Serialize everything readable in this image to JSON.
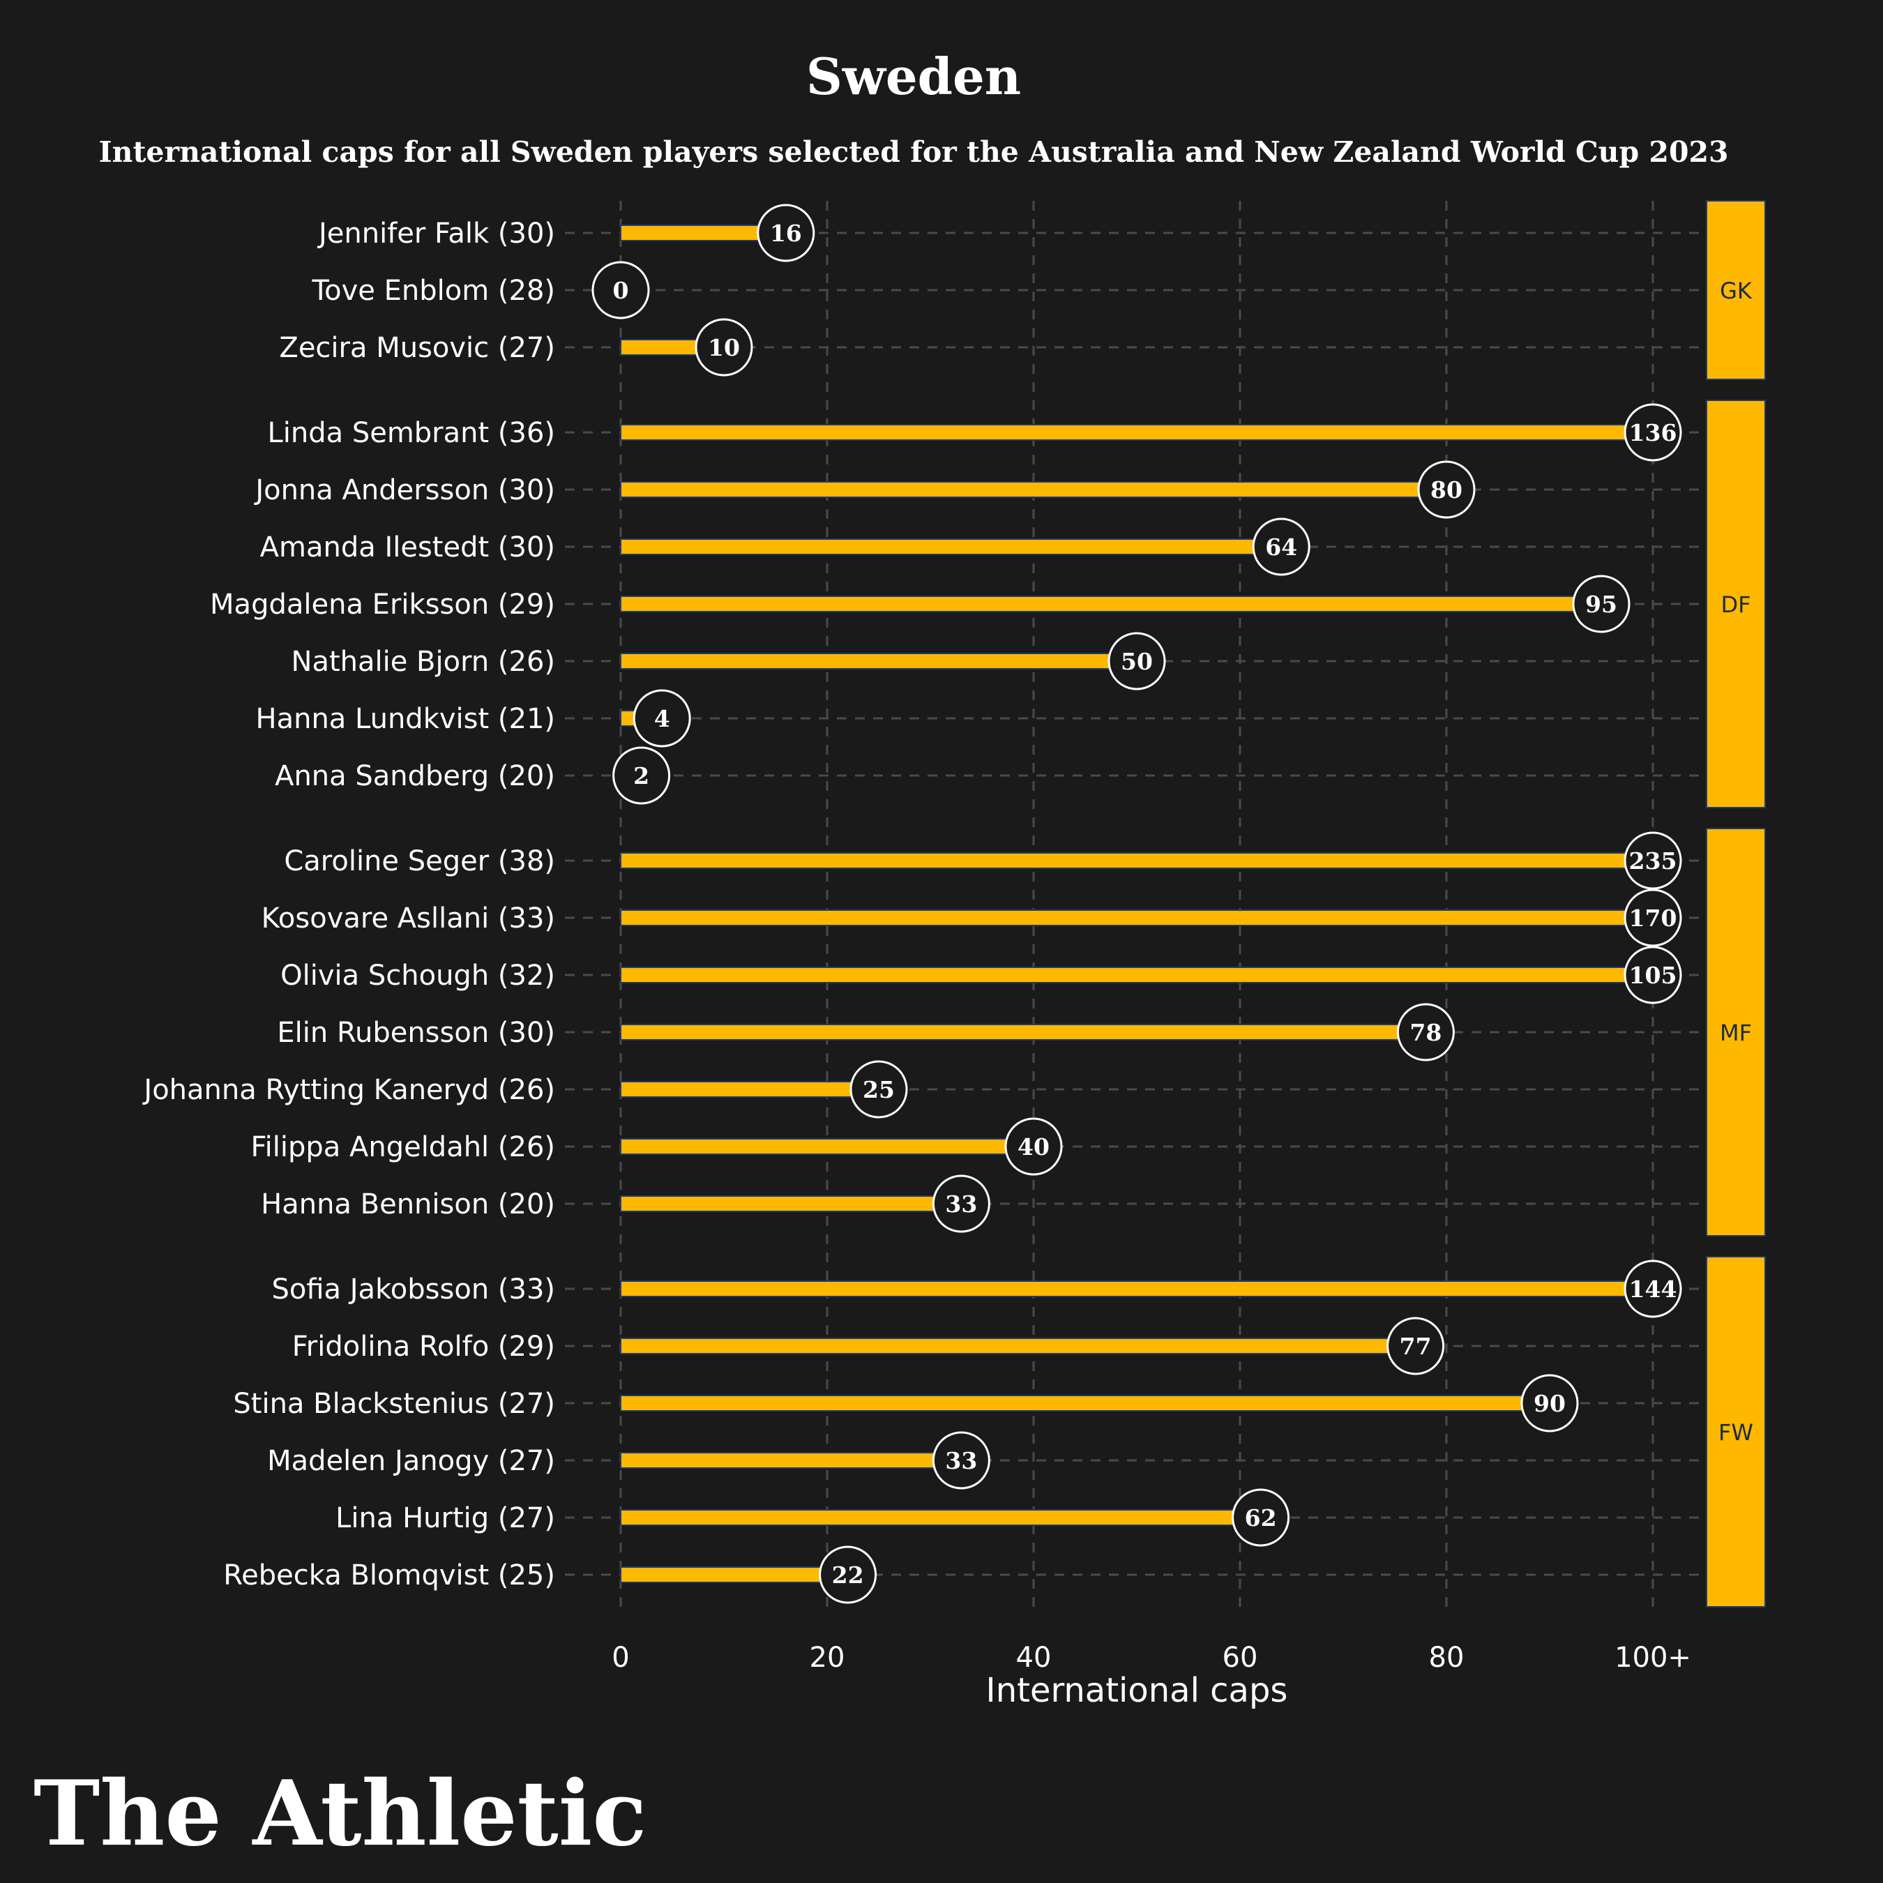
{
  "brand": {
    "name": "The Athletic"
  },
  "colors": {
    "background": "#1a1a1a",
    "bar": "#ffb800",
    "bar_edge": "#1e3a6e",
    "grid": "#4a4a4a",
    "text": "#ffffff",
    "group_text": "#1e2a44"
  },
  "chart_data": {
    "type": "bar",
    "orientation": "horizontal",
    "title": "Sweden",
    "subtitle": "International caps for all Sweden players selected for the Australia and New Zealand World Cup 2023",
    "xlabel": "International caps",
    "ylabel": "",
    "xlim": [
      0,
      100
    ],
    "x_ticks": [
      0,
      20,
      40,
      60,
      80,
      100
    ],
    "x_tick_labels": [
      "0",
      "20",
      "40",
      "60",
      "80",
      "100+"
    ],
    "grid": true,
    "groups": [
      {
        "name": "GK",
        "players": [
          {
            "label": "Jennifer Falk (30)",
            "caps": 16
          },
          {
            "label": "Tove Enblom (28)",
            "caps": 0
          },
          {
            "label": "Zecira Musovic (27)",
            "caps": 10
          }
        ]
      },
      {
        "name": "DF",
        "players": [
          {
            "label": "Linda Sembrant (36)",
            "caps": 136
          },
          {
            "label": "Jonna Andersson (30)",
            "caps": 80
          },
          {
            "label": "Amanda Ilestedt (30)",
            "caps": 64
          },
          {
            "label": "Magdalena Eriksson (29)",
            "caps": 95
          },
          {
            "label": "Nathalie Bjorn (26)",
            "caps": 50
          },
          {
            "label": "Hanna Lundkvist (21)",
            "caps": 4
          },
          {
            "label": "Anna Sandberg (20)",
            "caps": 2
          }
        ]
      },
      {
        "name": "MF",
        "players": [
          {
            "label": "Caroline Seger (38)",
            "caps": 235
          },
          {
            "label": "Kosovare Asllani (33)",
            "caps": 170
          },
          {
            "label": "Olivia Schough (32)",
            "caps": 105
          },
          {
            "label": "Elin Rubensson (30)",
            "caps": 78
          },
          {
            "label": "Johanna Rytting Kaneryd (26)",
            "caps": 25
          },
          {
            "label": "Filippa Angeldahl (26)",
            "caps": 40
          },
          {
            "label": "Hanna Bennison (20)",
            "caps": 33
          }
        ]
      },
      {
        "name": "FW",
        "players": [
          {
            "label": "Sofia Jakobsson (33)",
            "caps": 144
          },
          {
            "label": "Fridolina Rolfo (29)",
            "caps": 77
          },
          {
            "label": "Stina Blackstenius (27)",
            "caps": 90
          },
          {
            "label": "Madelen Janogy (27)",
            "caps": 33
          },
          {
            "label": "Lina Hurtig (27)",
            "caps": 62
          },
          {
            "label": "Rebecka Blomqvist (25)",
            "caps": 22
          }
        ]
      }
    ]
  }
}
